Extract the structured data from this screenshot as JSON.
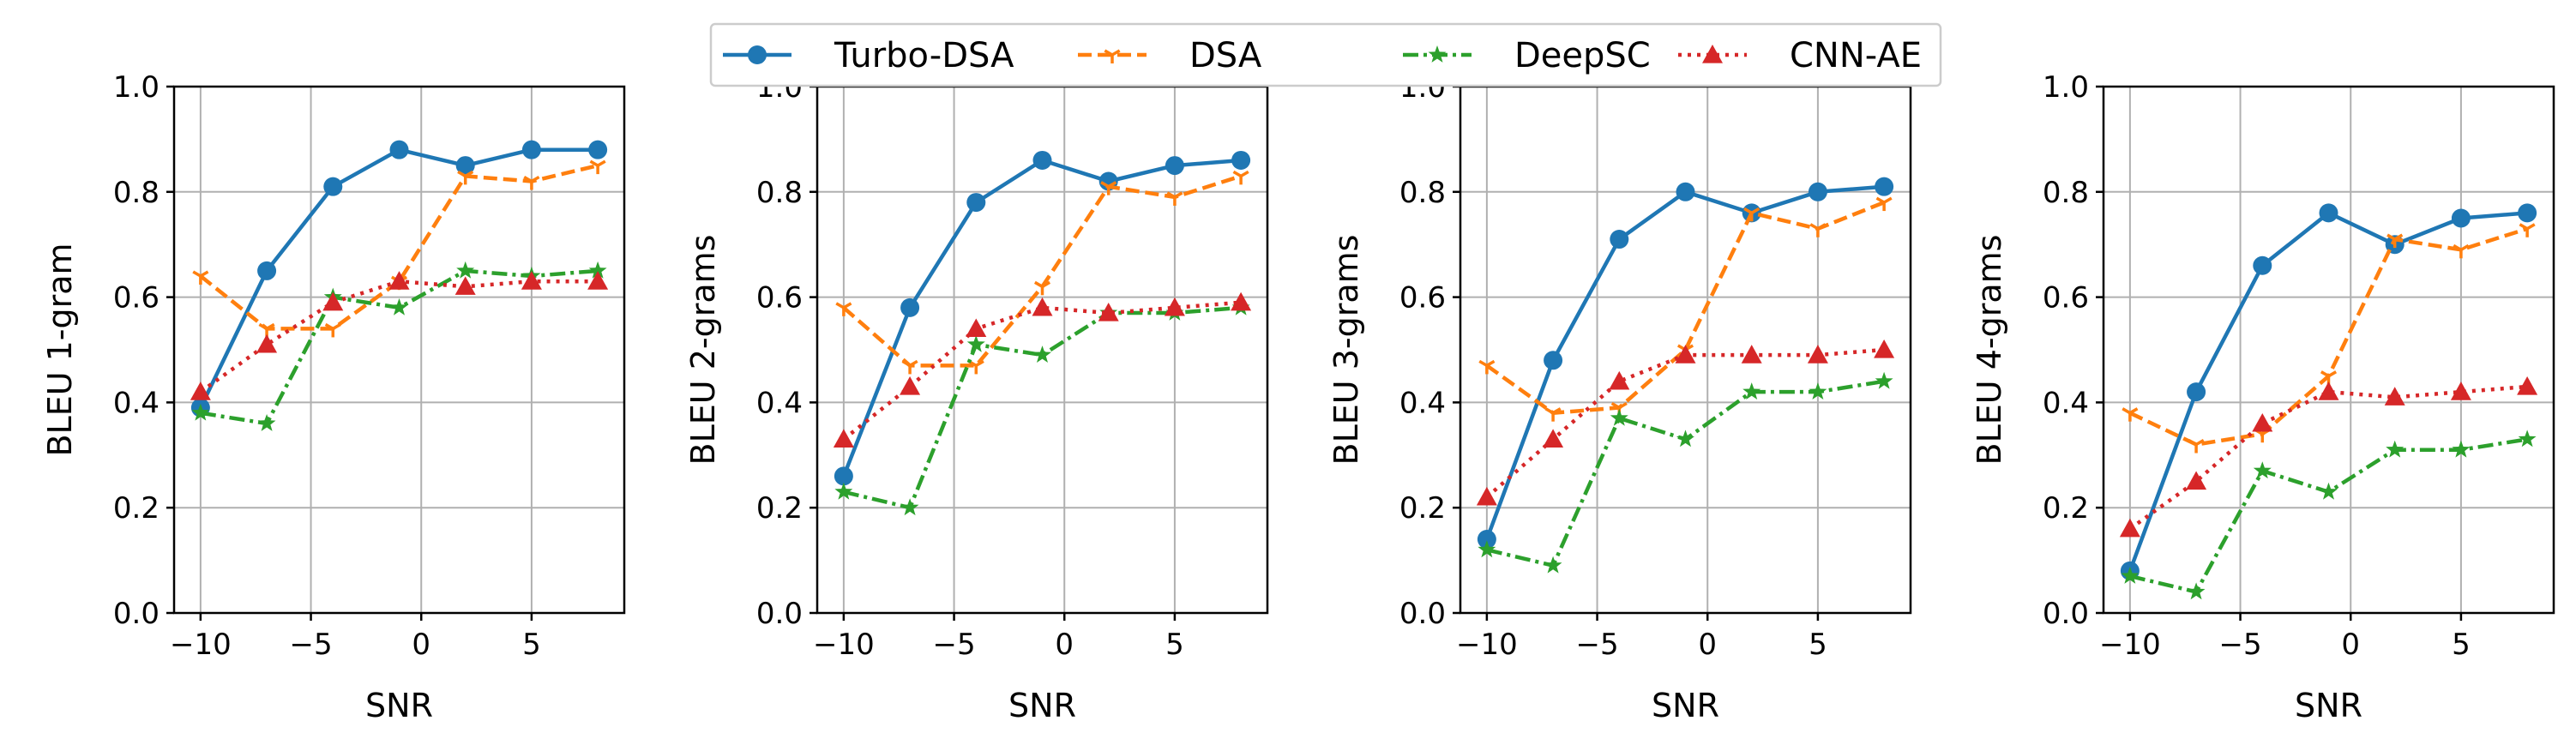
{
  "chart_data": {
    "type": "line",
    "x": [
      -10,
      -7,
      -4,
      -1,
      2,
      5,
      8
    ],
    "xlim": [
      -11.2,
      9.2
    ],
    "ylim": [
      0.0,
      1.0
    ],
    "xticks": [
      -10,
      -5,
      0,
      5
    ],
    "xtick_labels": [
      "−10",
      "−5",
      "0",
      "5"
    ],
    "yticks": [
      0.0,
      0.2,
      0.4,
      0.6,
      0.8,
      1.0
    ],
    "ytick_labels": [
      "0.0",
      "0.2",
      "0.4",
      "0.6",
      "0.8",
      "1.0"
    ],
    "grid": true,
    "legend_placement": "top-center",
    "legend": [
      "Turbo-DSA",
      "DSA",
      "DeepSC",
      "CNN-AE"
    ],
    "series_styles": [
      {
        "name": "Turbo-DSA",
        "color": "#1f77b4",
        "dash": "solid",
        "marker": "circle"
      },
      {
        "name": "DSA",
        "color": "#ff7f0e",
        "dash": "dashed",
        "marker": "tri-down"
      },
      {
        "name": "DeepSC",
        "color": "#2ca02c",
        "dash": "dashdot",
        "marker": "star"
      },
      {
        "name": "CNN-AE",
        "color": "#d62728",
        "dash": "dotted",
        "marker": "triangle"
      }
    ],
    "panels": [
      {
        "xlabel": "SNR",
        "ylabel": "BLEU 1-gram",
        "series": [
          {
            "name": "Turbo-DSA",
            "values": [
              0.39,
              0.65,
              0.81,
              0.88,
              0.85,
              0.88,
              0.88
            ]
          },
          {
            "name": "DSA",
            "values": [
              0.64,
              0.54,
              0.54,
              0.63,
              0.83,
              0.82,
              0.85
            ]
          },
          {
            "name": "DeepSC",
            "values": [
              0.38,
              0.36,
              0.6,
              0.58,
              0.65,
              0.64,
              0.65
            ]
          },
          {
            "name": "CNN-AE",
            "values": [
              0.42,
              0.51,
              0.59,
              0.63,
              0.62,
              0.63,
              0.63
            ]
          }
        ]
      },
      {
        "xlabel": "SNR",
        "ylabel": "BLEU 2-grams",
        "series": [
          {
            "name": "Turbo-DSA",
            "values": [
              0.26,
              0.58,
              0.78,
              0.86,
              0.82,
              0.85,
              0.86
            ]
          },
          {
            "name": "DSA",
            "values": [
              0.58,
              0.47,
              0.47,
              0.62,
              0.81,
              0.79,
              0.83
            ]
          },
          {
            "name": "DeepSC",
            "values": [
              0.23,
              0.2,
              0.51,
              0.49,
              0.57,
              0.57,
              0.58
            ]
          },
          {
            "name": "CNN-AE",
            "values": [
              0.33,
              0.43,
              0.54,
              0.58,
              0.57,
              0.58,
              0.59
            ]
          }
        ]
      },
      {
        "xlabel": "SNR",
        "ylabel": "BLEU 3-grams",
        "series": [
          {
            "name": "Turbo-DSA",
            "values": [
              0.14,
              0.48,
              0.71,
              0.8,
              0.76,
              0.8,
              0.81
            ]
          },
          {
            "name": "DSA",
            "values": [
              0.47,
              0.38,
              0.39,
              0.5,
              0.76,
              0.73,
              0.78
            ]
          },
          {
            "name": "DeepSC",
            "values": [
              0.12,
              0.09,
              0.37,
              0.33,
              0.42,
              0.42,
              0.44
            ]
          },
          {
            "name": "CNN-AE",
            "values": [
              0.22,
              0.33,
              0.44,
              0.49,
              0.49,
              0.49,
              0.5
            ]
          }
        ]
      },
      {
        "xlabel": "SNR",
        "ylabel": "BLEU 4-grams",
        "series": [
          {
            "name": "Turbo-DSA",
            "values": [
              0.08,
              0.42,
              0.66,
              0.76,
              0.7,
              0.75,
              0.76
            ]
          },
          {
            "name": "DSA",
            "values": [
              0.38,
              0.32,
              0.34,
              0.45,
              0.71,
              0.69,
              0.73
            ]
          },
          {
            "name": "DeepSC",
            "values": [
              0.07,
              0.04,
              0.27,
              0.23,
              0.31,
              0.31,
              0.33
            ]
          },
          {
            "name": "CNN-AE",
            "values": [
              0.16,
              0.25,
              0.36,
              0.42,
              0.41,
              0.42,
              0.43
            ]
          }
        ]
      }
    ]
  }
}
